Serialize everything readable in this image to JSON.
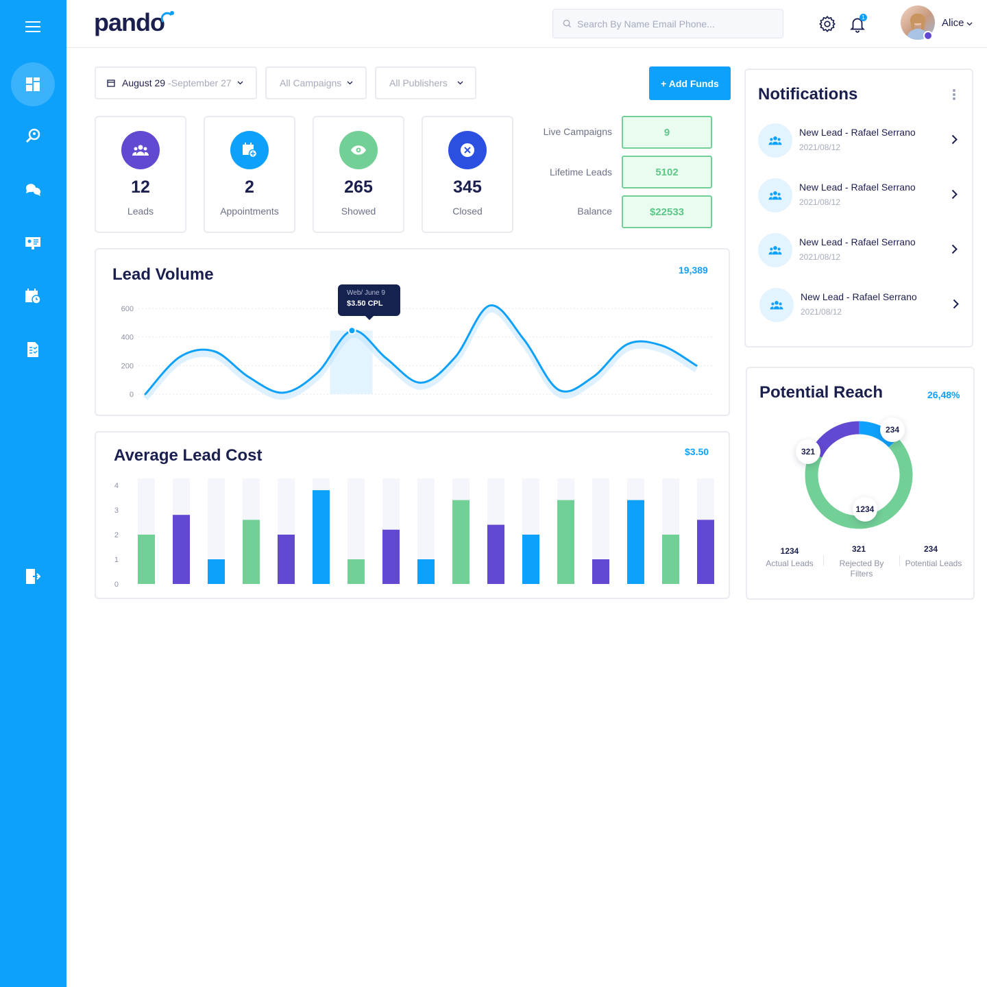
{
  "app": {
    "logo": "pando"
  },
  "search": {
    "placeholder": "Search By Name Email Phone..."
  },
  "user": {
    "name": "Alice",
    "notification_count": "1"
  },
  "filters": {
    "date_start": "August 29",
    "date_end": "-September 27",
    "campaigns": "All Campaigns",
    "publishers": "All Publishers",
    "add_funds": "+ Add Funds"
  },
  "stats": [
    {
      "value": "12",
      "label": "Leads",
      "color": "#6348d1",
      "icon": "users-icon"
    },
    {
      "value": "2",
      "label": "Appointments",
      "color": "#0ea1fb",
      "icon": "calendar-add-icon"
    },
    {
      "value": "265",
      "label": "Showed",
      "color": "#72cf96",
      "icon": "eye-icon"
    },
    {
      "value": "345",
      "label": "Closed",
      "color": "#2b4fe0",
      "icon": "close-circle-icon"
    }
  ],
  "summary": [
    {
      "label": "Live Campaigns",
      "value": "9"
    },
    {
      "label": "Lifetime Leads",
      "value": "5102"
    },
    {
      "label": "Balance",
      "value": "$22533"
    }
  ],
  "lead_volume": {
    "title": "Lead Volume",
    "total": "19,389",
    "tooltip_title": "Web/ June 9",
    "tooltip_value": "$3.50 CPL"
  },
  "avg_cost": {
    "title": "Average Lead Cost",
    "total": "$3.50"
  },
  "notifications": {
    "title": "Notifications",
    "items": [
      {
        "title": "New Lead - Rafael Serrano",
        "date": "2021/08/12"
      },
      {
        "title": "New Lead - Rafael Serrano",
        "date": "2021/08/12"
      },
      {
        "title": "New Lead - Rafael Serrano",
        "date": "2021/08/12"
      },
      {
        "title": "New Lead - Rafael Serrano",
        "date": "2021/08/12"
      }
    ]
  },
  "reach": {
    "title": "Potential Reach",
    "percent": "26,48%",
    "actual": "1234",
    "actual_label": "Actual Leads",
    "rejected": "321",
    "rejected_label": "Rejected By Filters",
    "potential": "234",
    "potential_label": "Potential Leads"
  },
  "chart_data": [
    {
      "type": "line",
      "title": "Lead Volume",
      "x": [
        0,
        1,
        2,
        3,
        4,
        5,
        6,
        7,
        8,
        9,
        10,
        11,
        12,
        13,
        14,
        15,
        16
      ],
      "values": [
        0,
        260,
        300,
        120,
        10,
        150,
        445,
        250,
        80,
        260,
        620,
        380,
        30,
        120,
        350,
        340,
        200
      ],
      "ylim": [
        0,
        600
      ],
      "yticks": [
        "0",
        "200",
        "400",
        "600"
      ],
      "highlight_index": 6,
      "color": "#0ea1fb"
    },
    {
      "type": "bar",
      "title": "Average Lead Cost",
      "values": [
        2,
        2.8,
        1,
        2.6,
        2,
        3.8,
        1,
        2.2,
        1,
        3.4,
        2.4,
        2,
        3.4,
        1,
        3.4,
        2,
        2.6
      ],
      "colors": [
        "#72cf96",
        "#6348d1",
        "#0ea1fb",
        "#72cf96",
        "#6348d1",
        "#0ea1fb",
        "#72cf96",
        "#6348d1",
        "#0ea1fb",
        "#72cf96",
        "#6348d1",
        "#0ea1fb",
        "#72cf96",
        "#6348d1",
        "#0ea1fb",
        "#72cf96",
        "#6348d1"
      ],
      "ylim": [
        0,
        4
      ],
      "yticks": [
        "0",
        "1",
        "2",
        "3",
        "4"
      ]
    },
    {
      "type": "pie",
      "title": "Potential Reach",
      "slices": [
        {
          "name": "Potential Leads",
          "value": 234,
          "color": "#0ea1fb"
        },
        {
          "name": "Actual Leads",
          "value": 1234,
          "color": "#72cf96"
        },
        {
          "name": "Rejected By Filters",
          "value": 321,
          "color": "#6348d1"
        }
      ]
    }
  ]
}
